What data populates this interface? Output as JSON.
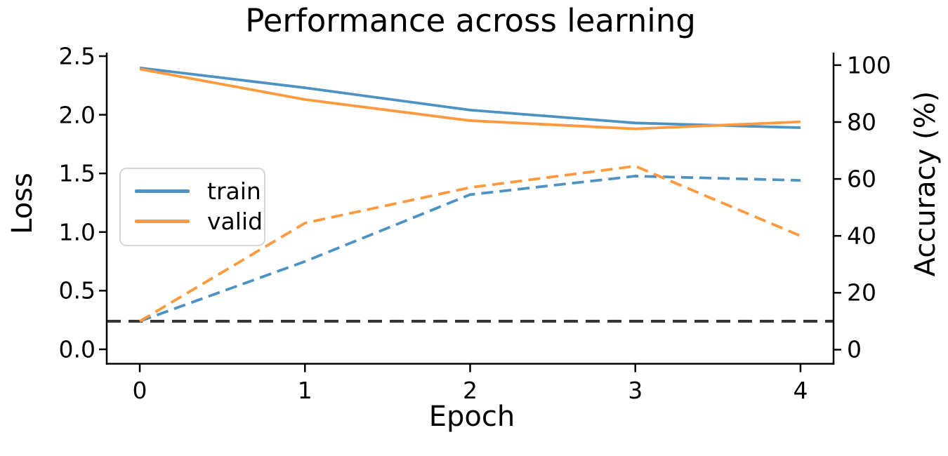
{
  "title": "Performance across learning",
  "legend": {
    "entries": [
      {
        "label": "train",
        "color": "#4C92C3"
      },
      {
        "label": "valid",
        "color": "#FF993E"
      }
    ]
  },
  "chart_data": {
    "type": "line",
    "title": "Performance across learning",
    "xlabel": "Epoch",
    "ylabel_left": "Loss",
    "ylabel_right": "Accuracy (%)",
    "x": [
      0,
      1,
      2,
      3,
      4
    ],
    "series": [
      {
        "name": "train loss",
        "legend": "train",
        "axis": "left",
        "style": "solid",
        "color": "#4C92C3",
        "values": [
          2.4,
          2.23,
          2.04,
          1.93,
          1.89
        ]
      },
      {
        "name": "valid loss",
        "legend": "valid",
        "axis": "left",
        "style": "solid",
        "color": "#FF993E",
        "values": [
          2.39,
          2.13,
          1.95,
          1.88,
          1.94
        ]
      },
      {
        "name": "train accuracy",
        "legend": "train",
        "axis": "right",
        "style": "dashed",
        "color": "#4C92C3",
        "values": [
          10,
          31,
          54.5,
          61,
          59.5
        ]
      },
      {
        "name": "valid accuracy",
        "legend": "valid",
        "axis": "right",
        "style": "dashed",
        "color": "#FF993E",
        "values": [
          10,
          44.5,
          57,
          64.5,
          40
        ]
      }
    ],
    "baseline": {
      "axis": "right",
      "value": 10,
      "style": "dashed",
      "color": "#333333",
      "note": "horizontal dashed reference line at 10% accuracy"
    },
    "axes": {
      "x": {
        "label": "Epoch",
        "ticks": [
          "0",
          "1",
          "2",
          "3",
          "4"
        ],
        "tick_values": [
          0,
          1,
          2,
          3,
          4
        ],
        "min": -0.2,
        "max": 4.2
      },
      "left": {
        "label": "Loss",
        "ticks": [
          "2.5",
          "2.0",
          "1.5",
          "1.0",
          "0.5",
          "0.0"
        ],
        "tick_values": [
          2.5,
          2.0,
          1.5,
          1.0,
          0.5,
          0.0
        ],
        "min": -0.123,
        "max": 2.53
      },
      "right": {
        "label": "Accuracy (%)",
        "ticks": [
          "100",
          "80",
          "60",
          "40",
          "20",
          "0"
        ],
        "tick_values": [
          100,
          80,
          60,
          40,
          20,
          0
        ],
        "min": -4.94,
        "max": 104.4
      }
    },
    "grid": false,
    "legend_position": "center left",
    "legend_entries": [
      "train",
      "valid"
    ]
  }
}
